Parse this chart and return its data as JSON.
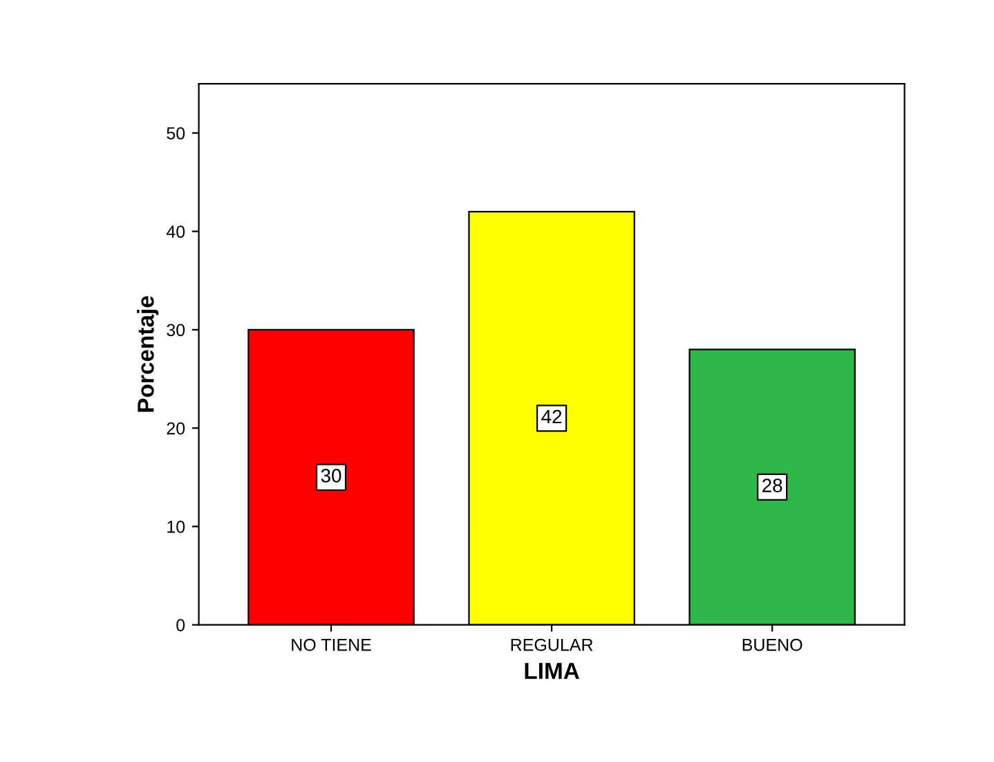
{
  "chart_data": {
    "type": "bar",
    "xlabel": "LIMA",
    "ylabel": "Porcentaje",
    "categories": [
      "NO TIENE",
      "REGULAR",
      "BUENO"
    ],
    "values": [
      30,
      42,
      28
    ],
    "colors": [
      "#ff0000",
      "#ffff00",
      "#2fb84a"
    ],
    "ylim": [
      0,
      55
    ],
    "yticks": [
      0,
      10,
      20,
      30,
      40,
      50
    ],
    "data_labels": true,
    "grid": false,
    "legend": false
  }
}
